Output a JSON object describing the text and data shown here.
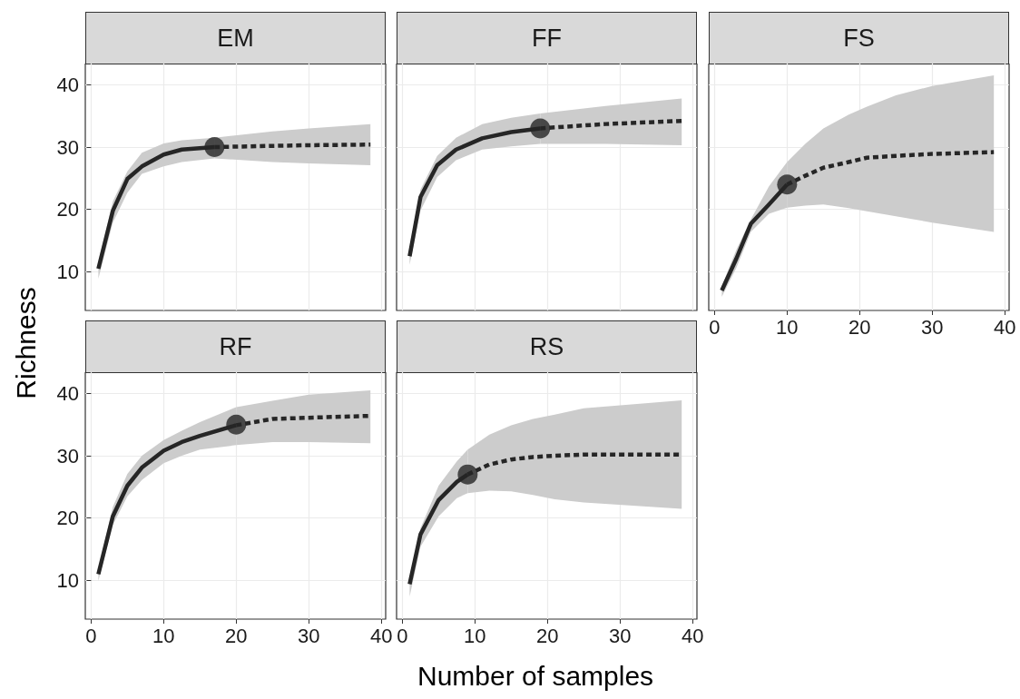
{
  "chart_data": [
    {
      "type": "line",
      "title": "EM",
      "xlim": [
        -0.8,
        40.6
      ],
      "ylim": [
        3.8,
        43.4
      ],
      "xticks": [
        0,
        10,
        20,
        30,
        40
      ],
      "yticks": [
        10,
        20,
        30,
        40
      ],
      "grid": true,
      "tick_labels": "y",
      "series": [
        {
          "type": "line",
          "line_style": "solid",
          "marker": "none",
          "color": "#262626",
          "x": [
            1,
            3,
            5,
            7,
            10,
            12.5,
            17
          ],
          "values": [
            10.5,
            19.8,
            24.9,
            26.9,
            28.8,
            29.6,
            30
          ],
          "lower": [
            8.9,
            17.9,
            22.7,
            25.7,
            26.9,
            27.6,
            28.2
          ],
          "upper": [
            11.6,
            21.3,
            26.1,
            29.1,
            30.6,
            31.1,
            31.5
          ]
        },
        {
          "type": "line",
          "line_style": "dashed",
          "marker": "none",
          "color": "#262626",
          "x": [
            17,
            25,
            30,
            38.5
          ],
          "values": [
            30,
            30.2,
            30.3,
            30.4
          ],
          "lower": [
            28.2,
            27.6,
            27.4,
            27.1
          ],
          "upper": [
            31.5,
            32.5,
            33.0,
            33.7
          ]
        },
        {
          "type": "scatter",
          "marker": "circle",
          "color": "#262626",
          "x": [
            17
          ],
          "values": [
            30
          ]
        }
      ]
    },
    {
      "type": "line",
      "title": "FF",
      "xlim": [
        -0.8,
        40.6
      ],
      "ylim": [
        3.8,
        43.4
      ],
      "xticks": [
        0,
        10,
        20,
        30,
        40
      ],
      "yticks": [
        10,
        20,
        30,
        40
      ],
      "grid": true,
      "tick_labels": false,
      "series": [
        {
          "type": "line",
          "line_style": "solid",
          "marker": "none",
          "color": "#262626",
          "x": [
            1,
            2.5,
            4.8,
            7.4,
            11,
            15,
            19
          ],
          "values": [
            12.5,
            22.0,
            27.1,
            29.6,
            31.4,
            32.4,
            33.0
          ],
          "lower": [
            11.1,
            19.8,
            25.2,
            27.9,
            29.6,
            30.1,
            30.5
          ],
          "upper": [
            13.5,
            23.2,
            28.6,
            31.5,
            33.7,
            34.7,
            35.4
          ]
        },
        {
          "type": "line",
          "line_style": "dashed",
          "marker": "none",
          "color": "#262626",
          "x": [
            19,
            28,
            38.5
          ],
          "values": [
            33.0,
            33.7,
            34.2
          ],
          "lower": [
            30.5,
            30.5,
            30.3
          ],
          "upper": [
            35.4,
            36.6,
            37.8
          ]
        },
        {
          "type": "scatter",
          "marker": "circle",
          "color": "#262626",
          "x": [
            19
          ],
          "values": [
            33
          ]
        }
      ]
    },
    {
      "type": "line",
      "title": "FS",
      "xlim": [
        -0.8,
        40.6
      ],
      "ylim": [
        3.8,
        43.4
      ],
      "xticks": [
        0,
        10,
        20,
        30,
        40
      ],
      "yticks": [
        10,
        20,
        30,
        40
      ],
      "grid": true,
      "tick_labels": "x",
      "series": [
        {
          "type": "line",
          "line_style": "solid",
          "marker": "none",
          "color": "#262626",
          "x": [
            1,
            3,
            5,
            7.5,
            10
          ],
          "values": [
            7.0,
            12.1,
            17.7,
            20.8,
            24.0
          ],
          "lower": [
            6.0,
            10.6,
            16.4,
            19.3,
            20.3
          ],
          "upper": [
            7.7,
            13.5,
            18.4,
            23.7,
            27.6
          ]
        },
        {
          "type": "line",
          "line_style": "dashed",
          "marker": "none",
          "color": "#262626",
          "x": [
            10,
            12.5,
            15,
            18.5,
            21,
            25,
            30,
            38.5
          ],
          "values": [
            24.0,
            25.4,
            26.7,
            27.6,
            28.3,
            28.6,
            28.9,
            29.2
          ],
          "lower": [
            20.3,
            20.6,
            20.8,
            20.2,
            19.7,
            18.9,
            17.9,
            16.4
          ],
          "upper": [
            27.6,
            30.5,
            33.0,
            35.2,
            36.5,
            38.3,
            39.8,
            41.5
          ]
        },
        {
          "type": "scatter",
          "marker": "circle",
          "color": "#262626",
          "x": [
            10
          ],
          "values": [
            24
          ]
        }
      ]
    },
    {
      "type": "line",
      "title": "RF",
      "ylabel": "Richness",
      "xlim": [
        -0.8,
        40.6
      ],
      "ylim": [
        3.8,
        43.4
      ],
      "xticks": [
        0,
        10,
        20,
        30,
        40
      ],
      "yticks": [
        10,
        20,
        30,
        40
      ],
      "grid": true,
      "series": [
        {
          "type": "line",
          "line_style": "solid",
          "marker": "none",
          "color": "#262626",
          "x": [
            1,
            3,
            5,
            7,
            10,
            12.5,
            15,
            20
          ],
          "values": [
            11.0,
            20.3,
            25.2,
            28.1,
            30.8,
            32.2,
            33.2,
            34.9
          ],
          "lower": [
            9.9,
            18.9,
            23.5,
            26.1,
            28.8,
            30.0,
            31.0,
            31.7
          ],
          "upper": [
            11.8,
            21.8,
            27.1,
            30.0,
            32.5,
            34.0,
            35.4,
            37.8
          ]
        },
        {
          "type": "line",
          "line_style": "dashed",
          "marker": "none",
          "color": "#262626",
          "x": [
            20,
            25,
            30,
            38.5
          ],
          "values": [
            34.9,
            35.9,
            36.1,
            36.4
          ],
          "lower": [
            31.7,
            32.2,
            32.2,
            32.0
          ],
          "upper": [
            37.8,
            38.8,
            39.8,
            40.5
          ]
        },
        {
          "type": "scatter",
          "marker": "circle",
          "color": "#262626",
          "x": [
            20
          ],
          "values": [
            35
          ]
        }
      ]
    },
    {
      "type": "line",
      "title": "RS",
      "xlabel": "Number of samples",
      "xlim": [
        -0.8,
        40.6
      ],
      "ylim": [
        3.8,
        43.4
      ],
      "xticks": [
        0,
        10,
        20,
        30,
        40
      ],
      "yticks": [
        10,
        20,
        30,
        40
      ],
      "grid": true,
      "tick_labels": "x",
      "series": [
        {
          "type": "line",
          "line_style": "solid",
          "marker": "none",
          "color": "#262626",
          "x": [
            1,
            2.5,
            5,
            7.5,
            9
          ],
          "values": [
            9.4,
            17.4,
            22.9,
            25.8,
            27.0
          ],
          "lower": [
            7.4,
            15.4,
            20.3,
            23.2,
            24.0
          ],
          "upper": [
            10.1,
            18.4,
            25.2,
            29.1,
            31.0
          ]
        },
        {
          "type": "line",
          "line_style": "dashed",
          "marker": "none",
          "color": "#262626",
          "x": [
            9,
            12,
            15,
            18,
            21,
            25,
            38.5
          ],
          "values": [
            27.0,
            28.6,
            29.4,
            29.8,
            30.0,
            30.2,
            30.2
          ],
          "lower": [
            24.0,
            24.4,
            24.3,
            23.7,
            23.0,
            22.5,
            21.5
          ],
          "upper": [
            31.0,
            33.4,
            34.9,
            35.9,
            36.6,
            37.6,
            38.9
          ]
        },
        {
          "type": "scatter",
          "marker": "circle",
          "color": "#262626",
          "x": [
            9
          ],
          "values": [
            27
          ]
        }
      ]
    }
  ]
}
